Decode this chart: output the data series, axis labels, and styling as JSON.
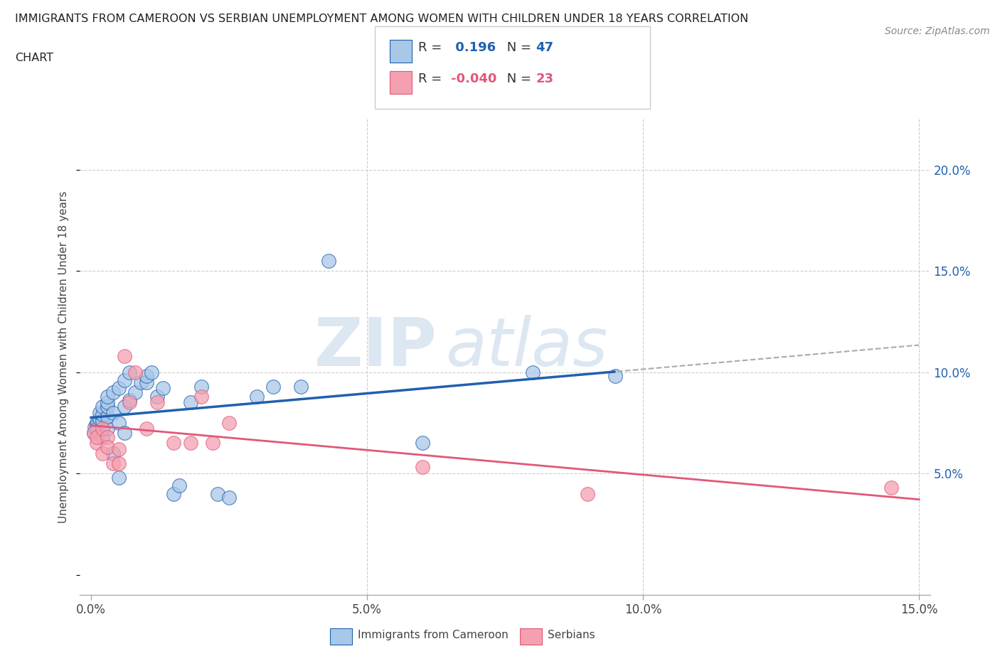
{
  "title_line1": "IMMIGRANTS FROM CAMEROON VS SERBIAN UNEMPLOYMENT AMONG WOMEN WITH CHILDREN UNDER 18 YEARS CORRELATION",
  "title_line2": "CHART",
  "source": "Source: ZipAtlas.com",
  "ylabel": "Unemployment Among Women with Children Under 18 years",
  "legend_label1": "Immigrants from Cameroon",
  "legend_label2": "Serbians",
  "R1": 0.196,
  "N1": 47,
  "R2": -0.04,
  "N2": 23,
  "color1": "#a8c8e8",
  "color2": "#f4a0b0",
  "trendline1_color": "#2060b0",
  "trendline2_color": "#e05878",
  "trendline_dash_color": "#aaaaaa",
  "xlim": [
    -0.002,
    0.152
  ],
  "ylim": [
    -0.01,
    0.225
  ],
  "xticks": [
    0.0,
    0.05,
    0.1,
    0.15
  ],
  "yticks": [
    0.05,
    0.1,
    0.15,
    0.2
  ],
  "blue_x": [
    0.0005,
    0.0007,
    0.001,
    0.001,
    0.001,
    0.0015,
    0.0015,
    0.002,
    0.002,
    0.002,
    0.002,
    0.003,
    0.003,
    0.003,
    0.003,
    0.003,
    0.004,
    0.004,
    0.004,
    0.005,
    0.005,
    0.005,
    0.006,
    0.006,
    0.006,
    0.007,
    0.007,
    0.008,
    0.009,
    0.01,
    0.01,
    0.011,
    0.012,
    0.013,
    0.015,
    0.016,
    0.018,
    0.02,
    0.023,
    0.025,
    0.03,
    0.033,
    0.038,
    0.043,
    0.06,
    0.08,
    0.095
  ],
  "blue_y": [
    0.07,
    0.073,
    0.075,
    0.074,
    0.072,
    0.077,
    0.08,
    0.068,
    0.076,
    0.079,
    0.083,
    0.072,
    0.078,
    0.083,
    0.085,
    0.088,
    0.06,
    0.08,
    0.09,
    0.048,
    0.075,
    0.092,
    0.07,
    0.083,
    0.096,
    0.086,
    0.1,
    0.09,
    0.095,
    0.095,
    0.098,
    0.1,
    0.088,
    0.092,
    0.04,
    0.044,
    0.085,
    0.093,
    0.04,
    0.038,
    0.088,
    0.093,
    0.093,
    0.155,
    0.065,
    0.1,
    0.098
  ],
  "pink_x": [
    0.0005,
    0.001,
    0.001,
    0.002,
    0.002,
    0.003,
    0.003,
    0.004,
    0.005,
    0.005,
    0.006,
    0.007,
    0.008,
    0.01,
    0.012,
    0.015,
    0.018,
    0.02,
    0.022,
    0.025,
    0.06,
    0.09,
    0.145
  ],
  "pink_y": [
    0.07,
    0.065,
    0.068,
    0.06,
    0.072,
    0.068,
    0.063,
    0.055,
    0.062,
    0.055,
    0.108,
    0.085,
    0.1,
    0.072,
    0.085,
    0.065,
    0.065,
    0.088,
    0.065,
    0.075,
    0.053,
    0.04,
    0.043
  ],
  "watermark_text": "ZIP",
  "watermark_text2": "atlas",
  "background_color": "#ffffff"
}
